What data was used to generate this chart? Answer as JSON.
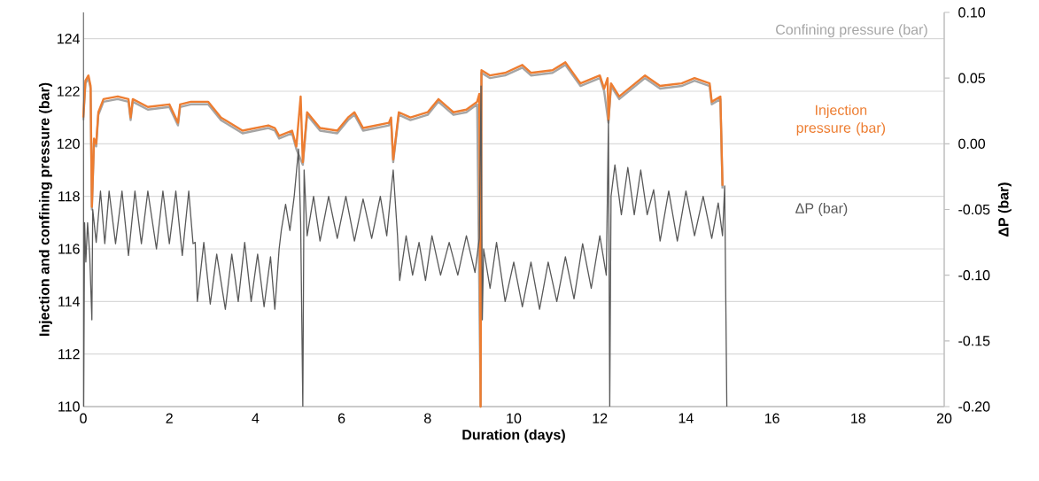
{
  "chart_data": {
    "type": "line",
    "xlabel": "Duration (days)",
    "ylabel": "Injection and confining pressure (bar)",
    "y2label": "ΔP (bar)",
    "xlim": [
      0,
      20
    ],
    "xticks": [
      0,
      2,
      4,
      6,
      8,
      10,
      12,
      14,
      16,
      18,
      20
    ],
    "ylim": [
      110,
      125
    ],
    "yticks": [
      110,
      112,
      114,
      116,
      118,
      120,
      122,
      124
    ],
    "y2lim": [
      -0.2,
      0.1
    ],
    "y2ticks": [
      {
        "value": -0.2,
        "label": "-0.20"
      },
      {
        "value": -0.15,
        "label": "-0.15"
      },
      {
        "value": -0.1,
        "label": "-0.10"
      },
      {
        "value": -0.05,
        "label": "-0.05"
      },
      {
        "value": 0,
        "label": "0.00"
      },
      {
        "value": 0.05,
        "label": "0.05"
      },
      {
        "value": 0.1,
        "label": "0.10"
      }
    ],
    "grid": "y",
    "legend": false,
    "series": [
      {
        "name": "Confining pressure (bar)",
        "color": "#a5a5a5",
        "x": [
          0.0,
          0.05,
          0.12,
          0.17,
          0.2,
          0.25,
          0.3,
          0.35,
          0.47,
          0.8,
          1.05,
          1.1,
          1.15,
          1.5,
          2.0,
          2.2,
          2.25,
          2.5,
          2.9,
          3.2,
          3.7,
          4.3,
          4.45,
          4.55,
          4.85,
          4.95,
          5.05,
          5.1,
          5.2,
          5.5,
          5.9,
          6.15,
          6.3,
          6.5,
          7.1,
          7.15,
          7.2,
          7.33,
          7.6,
          8.0,
          8.25,
          8.6,
          8.9,
          9.15,
          9.2,
          9.23,
          9.25,
          9.45,
          9.8,
          10.2,
          10.4,
          10.9,
          11.2,
          11.55,
          12.0,
          12.1,
          12.18,
          12.2,
          12.26,
          12.45,
          13.05,
          13.4,
          13.9,
          14.2,
          14.55,
          14.6,
          14.8,
          14.85
        ],
        "values": [
          120.9,
          122.3,
          122.5,
          122.1,
          117.5,
          120.1,
          119.9,
          121.1,
          121.6,
          121.7,
          121.6,
          120.9,
          121.6,
          121.3,
          121.4,
          120.7,
          121.4,
          121.5,
          121.5,
          120.9,
          120.4,
          120.6,
          120.5,
          120.2,
          120.4,
          119.8,
          null,
          119.2,
          121.1,
          120.5,
          120.4,
          120.9,
          121.1,
          120.5,
          120.7,
          120.9,
          119.3,
          121.1,
          120.9,
          121.1,
          121.6,
          121.1,
          121.2,
          121.5,
          null,
          110.0,
          122.7,
          122.5,
          122.6,
          122.9,
          122.6,
          122.7,
          123.0,
          122.2,
          122.5,
          122.0,
          null,
          120.8,
          122.2,
          121.7,
          122.5,
          122.1,
          122.2,
          122.4,
          122.2,
          121.5,
          121.7,
          118.3
        ]
      },
      {
        "name": "Injection pressure (bar)",
        "color": "#ed7d31",
        "x": [
          0.0,
          0.05,
          0.12,
          0.17,
          0.2,
          0.25,
          0.3,
          0.35,
          0.47,
          0.8,
          1.05,
          1.1,
          1.15,
          1.5,
          2.0,
          2.2,
          2.25,
          2.5,
          2.9,
          3.2,
          3.7,
          4.3,
          4.45,
          4.55,
          4.85,
          4.95,
          5.05,
          5.1,
          5.2,
          5.5,
          5.9,
          6.15,
          6.3,
          6.5,
          7.1,
          7.15,
          7.2,
          7.33,
          7.6,
          8.0,
          8.25,
          8.6,
          8.9,
          9.15,
          9.2,
          9.23,
          9.25,
          9.45,
          9.8,
          10.2,
          10.4,
          10.9,
          11.2,
          11.55,
          12.0,
          12.1,
          12.18,
          12.2,
          12.26,
          12.45,
          13.05,
          13.4,
          13.9,
          14.2,
          14.55,
          14.6,
          14.8,
          14.85
        ],
        "values": [
          121.0,
          122.4,
          122.6,
          122.2,
          117.6,
          120.2,
          120.0,
          121.2,
          121.7,
          121.8,
          121.7,
          121.0,
          121.7,
          121.4,
          121.5,
          120.8,
          121.5,
          121.6,
          121.6,
          121.0,
          120.5,
          120.7,
          120.6,
          120.3,
          120.5,
          119.9,
          121.8,
          119.3,
          121.2,
          120.6,
          120.5,
          121.0,
          121.2,
          120.6,
          120.8,
          121.0,
          119.4,
          121.2,
          121.0,
          121.2,
          121.7,
          121.2,
          121.3,
          121.6,
          121.9,
          110.0,
          122.8,
          122.6,
          122.7,
          123.0,
          122.7,
          122.8,
          123.1,
          122.3,
          122.6,
          122.1,
          122.5,
          120.9,
          122.3,
          121.8,
          122.6,
          122.2,
          122.3,
          122.5,
          122.3,
          121.6,
          121.8,
          118.4
        ]
      },
      {
        "name": "ΔP (bar)",
        "color": "#595959",
        "axis": "y2",
        "x": [
          0,
          0.01,
          0.03,
          0.06,
          0.1,
          0.15,
          0.2,
          0.22,
          0.3,
          0.4,
          0.5,
          0.6,
          0.75,
          0.9,
          1.05,
          1.2,
          1.35,
          1.5,
          1.7,
          1.85,
          2.0,
          2.15,
          2.3,
          2.45,
          2.55,
          2.6,
          2.65,
          2.8,
          2.95,
          3.1,
          3.3,
          3.45,
          3.6,
          3.75,
          3.9,
          4.05,
          4.2,
          4.35,
          4.45,
          4.55,
          4.6,
          4.7,
          4.8,
          4.9,
          5.0,
          5.05,
          5.1,
          5.13,
          5.2,
          5.35,
          5.5,
          5.7,
          5.9,
          6.1,
          6.3,
          6.5,
          6.7,
          6.9,
          7.05,
          7.15,
          7.2,
          7.3,
          7.35,
          7.5,
          7.65,
          7.8,
          7.95,
          8.1,
          8.3,
          8.5,
          8.7,
          8.9,
          9.1,
          9.2,
          9.24,
          9.27,
          9.3,
          9.45,
          9.6,
          9.8,
          10.0,
          10.2,
          10.4,
          10.6,
          10.8,
          11.0,
          11.2,
          11.4,
          11.6,
          11.8,
          12.0,
          12.15,
          12.2,
          12.23,
          12.26,
          12.35,
          12.5,
          12.65,
          12.8,
          12.95,
          13.1,
          13.25,
          13.4,
          13.6,
          13.8,
          14.0,
          14.2,
          14.4,
          14.6,
          14.75,
          14.85,
          14.9,
          14.95
        ],
        "values": [
          0.1,
          -0.2,
          -0.06,
          -0.09,
          -0.06,
          -0.085,
          -0.134,
          -0.05,
          -0.075,
          -0.036,
          -0.076,
          -0.036,
          -0.076,
          -0.036,
          -0.085,
          -0.036,
          -0.076,
          -0.036,
          -0.08,
          -0.036,
          -0.076,
          -0.036,
          -0.085,
          -0.036,
          -0.076,
          -0.075,
          -0.12,
          -0.075,
          -0.122,
          -0.084,
          -0.126,
          -0.084,
          -0.12,
          -0.075,
          -0.12,
          -0.084,
          -0.124,
          -0.086,
          -0.126,
          -0.08,
          -0.066,
          -0.046,
          -0.066,
          -0.04,
          -0.004,
          -0.06,
          -0.2,
          -0.02,
          -0.07,
          -0.04,
          -0.074,
          -0.04,
          -0.072,
          -0.04,
          -0.074,
          -0.042,
          -0.072,
          -0.04,
          -0.07,
          -0.036,
          -0.02,
          -0.07,
          -0.104,
          -0.07,
          -0.1,
          -0.075,
          -0.104,
          -0.07,
          -0.1,
          -0.075,
          -0.1,
          -0.07,
          -0.098,
          -0.072,
          0.044,
          -0.134,
          -0.08,
          -0.11,
          -0.075,
          -0.12,
          -0.09,
          -0.124,
          -0.09,
          -0.126,
          -0.09,
          -0.12,
          -0.086,
          -0.118,
          -0.076,
          -0.11,
          -0.07,
          -0.1,
          0.018,
          -0.2,
          -0.04,
          -0.016,
          -0.054,
          -0.018,
          -0.054,
          -0.02,
          -0.054,
          -0.035,
          -0.074,
          -0.036,
          -0.074,
          -0.036,
          -0.07,
          -0.04,
          -0.072,
          -0.045,
          -0.07,
          -0.032,
          -0.2
        ]
      }
    ]
  }
}
